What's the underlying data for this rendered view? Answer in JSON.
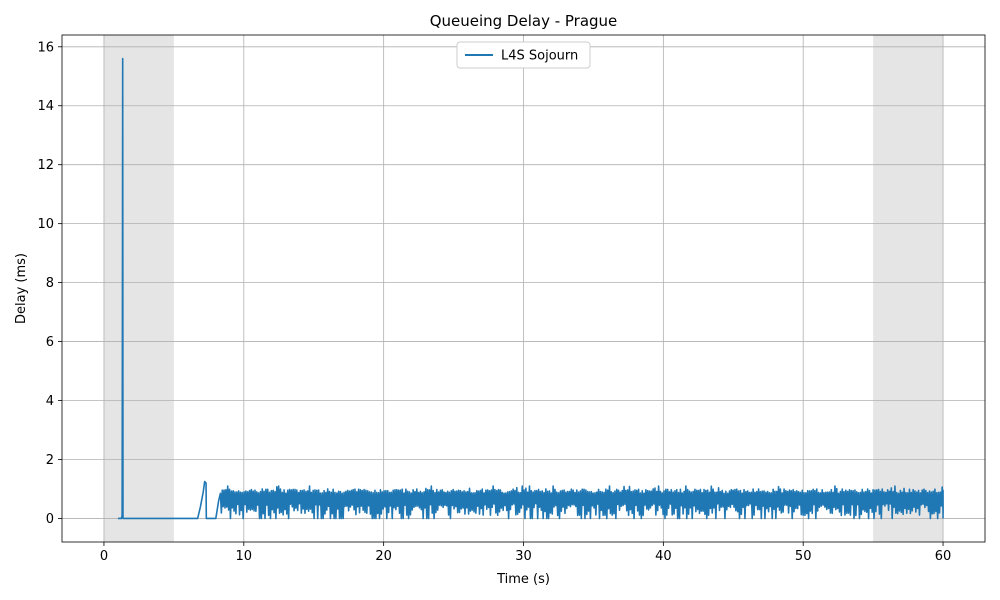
{
  "chart_data": {
    "type": "line",
    "title": "Queueing Delay - Prague",
    "xlabel": "Time (s)",
    "ylabel": "Delay (ms)",
    "xlim": [
      -3,
      63
    ],
    "ylim": [
      -0.8,
      16.4
    ],
    "xticks": [
      0,
      10,
      20,
      30,
      40,
      50,
      60
    ],
    "yticks": [
      0,
      2,
      4,
      6,
      8,
      10,
      12,
      14,
      16
    ],
    "grid": true,
    "legend_position": "top-center",
    "shaded_regions": [
      {
        "x_start": 0,
        "x_end": 5,
        "color": "#e5e5e5"
      },
      {
        "x_start": 55,
        "x_end": 60,
        "color": "#e5e5e5"
      }
    ],
    "series": [
      {
        "name": "L4S Sojourn",
        "color": "#1f77b4",
        "x": [
          1.0,
          1.25,
          1.3,
          1.32,
          1.34,
          1.36,
          1.4,
          2.0,
          3.0,
          4.0,
          5.0,
          6.0,
          6.7,
          6.9,
          7.1,
          7.2,
          7.3,
          7.32,
          7.35,
          7.5,
          7.8,
          8.0,
          8.2
        ],
        "y": [
          0.0,
          0.0,
          0.1,
          7.0,
          15.6,
          0.0,
          0.0,
          0.0,
          0.0,
          0.0,
          0.0,
          0.0,
          0.0,
          0.4,
          0.9,
          1.25,
          1.2,
          0.0,
          0.0,
          0.0,
          0.0,
          0.0,
          0.6
        ],
        "oscillation": {
          "x_start": 8.2,
          "x_end": 60,
          "y_min": 0.0,
          "y_typical_low": 0.3,
          "y_typical_high": 0.95,
          "y_max": 1.1
        }
      }
    ]
  }
}
